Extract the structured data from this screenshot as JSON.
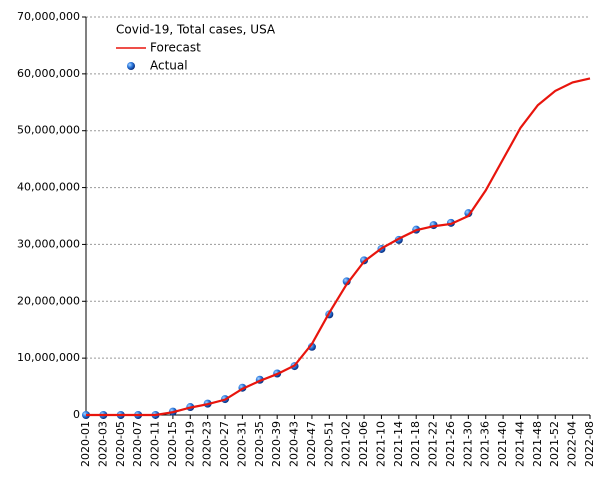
{
  "chart_data": {
    "type": "line",
    "title": "Covid-19, Total cases, USA",
    "categories": [
      "2020-01",
      "2020-03",
      "2020-05",
      "2020-07",
      "2020-11",
      "2020-15",
      "2020-19",
      "2020-23",
      "2020-27",
      "2020-31",
      "2020-35",
      "2020-39",
      "2020-43",
      "2020-47",
      "2020-51",
      "2021-02",
      "2021-06",
      "2021-10",
      "2021-14",
      "2021-18",
      "2021-22",
      "2021-26",
      "2021-30",
      "2021-36",
      "2021-40",
      "2021-44",
      "2021-48",
      "2021-52",
      "2022-04",
      "2022-08"
    ],
    "series": [
      {
        "name": "Forecast",
        "color": "#e8150d",
        "style": "line",
        "values": [
          0,
          0,
          0,
          0,
          3000,
          500000,
          1300000,
          1900000,
          2700000,
          4600000,
          6000000,
          7200000,
          8700000,
          12500000,
          18000000,
          23000000,
          27000000,
          29300000,
          31000000,
          32500000,
          33200000,
          33600000,
          35000000,
          39500000,
          45000000,
          50500000,
          54500000,
          57000000,
          58500000,
          59200000
        ]
      },
      {
        "name": "Actual",
        "color": "#1f6fd6",
        "style": "marker",
        "values": [
          0,
          0,
          0,
          0,
          3000,
          600000,
          1400000,
          2000000,
          2800000,
          4800000,
          6200000,
          7300000,
          8600000,
          12000000,
          17700000,
          23500000,
          27200000,
          29200000,
          30800000,
          32600000,
          33400000,
          33800000,
          35500000,
          null,
          null,
          null,
          null,
          null,
          null,
          null
        ]
      }
    ],
    "ylim": [
      0,
      70000000
    ],
    "yticks": [
      {
        "value": 0,
        "label": "0"
      },
      {
        "value": 10000000,
        "label": "10,000,000"
      },
      {
        "value": 20000000,
        "label": "20,000,000"
      },
      {
        "value": 30000000,
        "label": "30,000,000"
      },
      {
        "value": 40000000,
        "label": "40,000,000"
      },
      {
        "value": 50000000,
        "label": "50,000,000"
      },
      {
        "value": 60000000,
        "label": "60,000,000"
      },
      {
        "value": 70000000,
        "label": "70,000,000"
      }
    ],
    "grid": true
  }
}
